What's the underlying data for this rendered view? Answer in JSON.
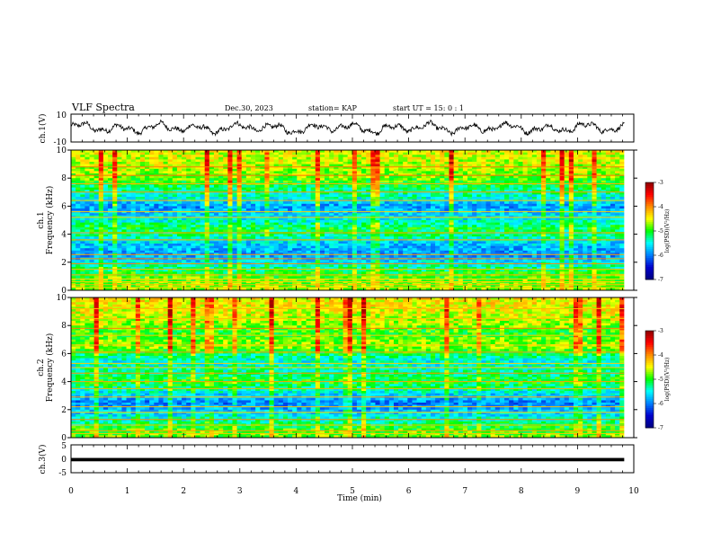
{
  "header": {
    "title": "VLF Spectra",
    "date": "Dec.30, 2023",
    "station": "station= KAP",
    "start": "start  UT =   15: 0  : 1"
  },
  "chart_data": [
    {
      "id": "ch1-waveform",
      "type": "line",
      "ylabel": "ch.1(V)",
      "ylim": [
        -10,
        10
      ],
      "yticks": [
        "10",
        "-10"
      ],
      "xlim": [
        0,
        10
      ],
      "data_end": 9.83,
      "series": [
        {
          "color": "#000000",
          "baseline": 0,
          "amplitude": 4,
          "min": -6,
          "max": 7
        }
      ]
    },
    {
      "id": "ch1-spectrogram",
      "type": "heatmap",
      "ylabel_top": "ch.1",
      "ylabel": "Frequency (kHz)",
      "ylim": [
        0,
        10
      ],
      "yticks": [
        "0",
        "2",
        "4",
        "6",
        "8",
        "10"
      ],
      "xlim": [
        0,
        10
      ],
      "data_end": 9.83,
      "profile": [
        {
          "f": 0.0,
          "v": -4.7
        },
        {
          "f": 0.5,
          "v": -4.8
        },
        {
          "f": 1.0,
          "v": -4.9
        },
        {
          "f": 1.5,
          "v": -5.2
        },
        {
          "f": 2.0,
          "v": -5.6
        },
        {
          "f": 2.5,
          "v": -5.9
        },
        {
          "f": 3.0,
          "v": -5.8
        },
        {
          "f": 3.5,
          "v": -5.6
        },
        {
          "f": 4.0,
          "v": -5.2
        },
        {
          "f": 4.5,
          "v": -5.1
        },
        {
          "f": 5.0,
          "v": -5.5
        },
        {
          "f": 5.5,
          "v": -5.7
        },
        {
          "f": 6.0,
          "v": -5.9
        },
        {
          "f": 6.5,
          "v": -5.5
        },
        {
          "f": 7.0,
          "v": -5.3
        },
        {
          "f": 7.5,
          "v": -5.1
        },
        {
          "f": 8.0,
          "v": -4.8
        },
        {
          "f": 9.0,
          "v": -4.6
        },
        {
          "f": 10.0,
          "v": -4.5
        }
      ],
      "lines_khz": [
        0.2,
        0.4,
        0.6,
        0.8,
        1.1,
        1.5,
        1.9,
        2.25,
        2.55,
        3.6,
        4.1,
        5.2,
        5.6,
        6.4,
        7.0,
        7.6,
        8.2,
        8.8
      ]
    },
    {
      "id": "ch2-spectrogram",
      "type": "heatmap",
      "ylabel_top": "ch.2",
      "ylabel": "Frequency (kHz)",
      "ylim": [
        0,
        10
      ],
      "yticks": [
        "0",
        "2",
        "4",
        "6",
        "8",
        "10"
      ],
      "xlim": [
        0,
        10
      ],
      "data_end": 9.83,
      "profile": [
        {
          "f": 0.0,
          "v": -4.8
        },
        {
          "f": 0.5,
          "v": -4.9
        },
        {
          "f": 1.0,
          "v": -5.2
        },
        {
          "f": 1.5,
          "v": -5.5
        },
        {
          "f": 2.0,
          "v": -5.8
        },
        {
          "f": 2.5,
          "v": -6.0
        },
        {
          "f": 3.0,
          "v": -5.7
        },
        {
          "f": 3.5,
          "v": -5.3
        },
        {
          "f": 4.0,
          "v": -5.0
        },
        {
          "f": 4.5,
          "v": -5.2
        },
        {
          "f": 5.0,
          "v": -5.4
        },
        {
          "f": 5.5,
          "v": -5.5
        },
        {
          "f": 6.0,
          "v": -5.1
        },
        {
          "f": 6.5,
          "v": -4.7
        },
        {
          "f": 7.0,
          "v": -4.8
        },
        {
          "f": 7.5,
          "v": -5.0
        },
        {
          "f": 8.0,
          "v": -4.7
        },
        {
          "f": 9.0,
          "v": -4.5
        },
        {
          "f": 10.0,
          "v": -4.4
        }
      ],
      "lines_khz": [
        0.3,
        0.5,
        0.9,
        1.3,
        1.8,
        2.2,
        2.9,
        3.5,
        4.0,
        4.6,
        5.0,
        5.3,
        6.1,
        6.6,
        7.3,
        7.8,
        8.5,
        9.2
      ]
    },
    {
      "id": "ch3-waveform",
      "type": "line",
      "ylabel": "ch.3(V)",
      "ylim": [
        -5,
        5
      ],
      "yticks": [
        "5",
        "0",
        "-5"
      ],
      "xlabel": "Time  (min)",
      "xlim": [
        0,
        10
      ],
      "xticks": [
        "0",
        "1",
        "2",
        "3",
        "4",
        "5",
        "6",
        "7",
        "8",
        "9",
        "10"
      ],
      "data_end": 9.83,
      "series": [
        {
          "color": "#000000",
          "band": [
            -0.9,
            0.3
          ]
        }
      ]
    }
  ],
  "colorbar": {
    "label": "log(PSD)(V²/Hz)",
    "range": [
      -7,
      -3
    ],
    "ticks": [
      "-3",
      "-4",
      "-5",
      "-6",
      "-7"
    ],
    "stops": [
      "#8b0000",
      "#ff0000",
      "#ff8c00",
      "#ffff00",
      "#00ff00",
      "#00ffff",
      "#0080ff",
      "#0000cd",
      "#000080"
    ]
  }
}
